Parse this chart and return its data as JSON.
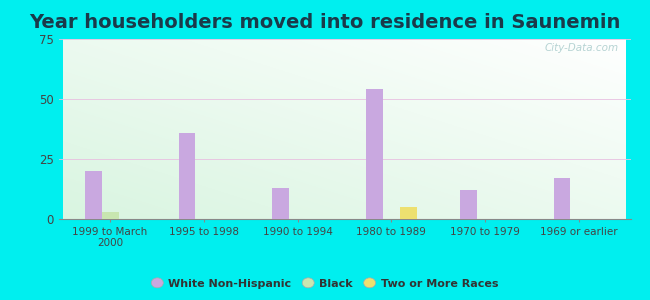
{
  "title": "Year householders moved into residence in Saunemin",
  "categories": [
    "1999 to March\n2000",
    "1995 to 1998",
    "1990 to 1994",
    "1980 to 1989",
    "1970 to 1979",
    "1969 or earlier"
  ],
  "white_non_hispanic": [
    20,
    36,
    13,
    54,
    12,
    17
  ],
  "black": [
    3,
    0,
    0,
    0,
    0,
    0
  ],
  "two_or_more_races": [
    0,
    0,
    0,
    5,
    0,
    0
  ],
  "colors": {
    "white_non_hispanic": "#c9a8e0",
    "black": "#c8e6b0",
    "two_or_more_races": "#ede070"
  },
  "ylim": [
    0,
    75
  ],
  "yticks": [
    0,
    25,
    50,
    75
  ],
  "outer_bg": "#00efef",
  "watermark": "City-Data.com",
  "bar_width": 0.18,
  "title_fontsize": 14,
  "title_color": "#1a3a4a",
  "tick_color": "#444444",
  "grid_color": "#e8c0e0"
}
